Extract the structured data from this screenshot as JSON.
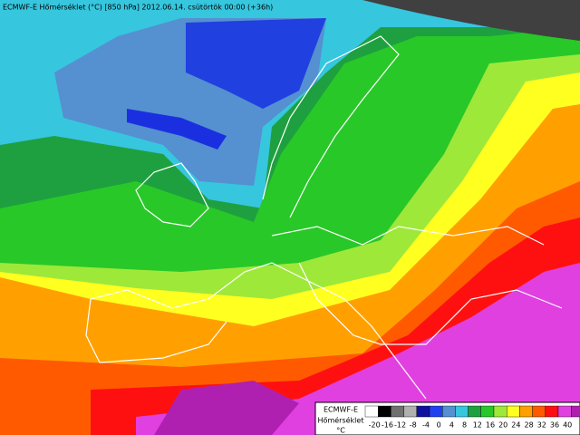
{
  "header": {
    "title": "ECMWF-E Hőmérséklet (°C) [850 hPa] 2012.06.14. csütörtök 00:00 (+36h)"
  },
  "legend": {
    "model": "ECMWF-E",
    "variable": "Hőmérséklet",
    "unit": "°C",
    "ticks": [
      -20,
      -16,
      -12,
      -8,
      -4,
      0,
      4,
      8,
      12,
      16,
      20,
      24,
      28,
      32,
      36,
      40
    ],
    "colors": [
      "#ffffff",
      "#000000",
      "#707070",
      "#b0b0b0",
      "#1010a0",
      "#2040f0",
      "#5590d0",
      "#36c6de",
      "#1ea040",
      "#28c828",
      "#9ee83a",
      "#ffff20",
      "#ffa000",
      "#ff5a00",
      "#ff1010",
      "#e040e0",
      "#b020b0"
    ]
  }
}
